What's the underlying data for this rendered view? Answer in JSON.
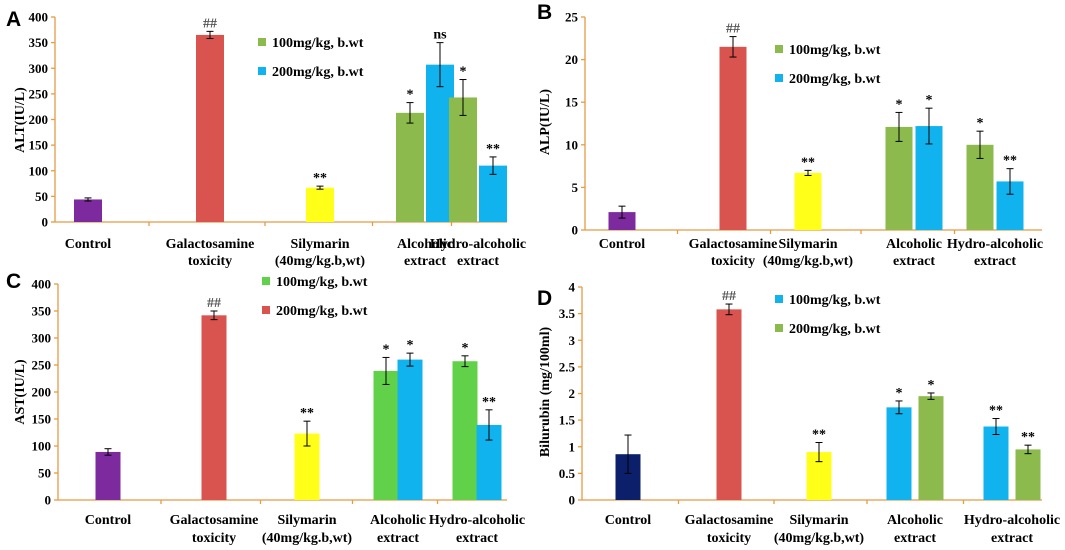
{
  "colors": {
    "purple": "#7c2a9e",
    "red": "#d9534f",
    "yellow": "#ffff1a",
    "olive_green": "#8cba4c",
    "bright_green": "#62d14a",
    "blue": "#11b3ee",
    "navy": "#0c1f6b",
    "axis": "#e69b45"
  },
  "chart_data": [
    {
      "panel": "A",
      "type": "bar",
      "ylabel": "ALT(IU/L)",
      "ylim": [
        0,
        400
      ],
      "yticks": [
        0,
        50,
        100,
        150,
        200,
        250,
        300,
        350,
        400
      ],
      "categories": [
        {
          "lines": [
            "Control"
          ]
        },
        {
          "lines": [
            "Galactosamine",
            "toxicity"
          ]
        },
        {
          "lines": [
            "Silymarin",
            "(40mg/kg.b,wt)"
          ]
        },
        {
          "lines": [
            "Alcoholic",
            "extract"
          ]
        },
        {
          "lines": [
            "Hydro-alcoholic",
            "extract"
          ]
        }
      ],
      "legend": [
        {
          "label": "100mg/kg, b.wt",
          "color": "#8cba4c"
        },
        {
          "label": "200mg/kg, b.wt",
          "color": "#11b3ee"
        }
      ],
      "bars": [
        {
          "cat": 0,
          "slot": "single",
          "value": 44,
          "error": 3,
          "color": "#7c2a9e",
          "label": ""
        },
        {
          "cat": 1,
          "slot": "single",
          "value": 365,
          "error": 7,
          "color": "#d9534f",
          "label": "##"
        },
        {
          "cat": 2,
          "slot": "single",
          "value": 67,
          "error": 3,
          "color": "#ffff1a",
          "label": "**"
        },
        {
          "cat": 3,
          "slot": "left",
          "value": 213,
          "error": 20,
          "color": "#8cba4c",
          "label": "*"
        },
        {
          "cat": 3,
          "slot": "right",
          "value": 307,
          "error": 43,
          "color": "#11b3ee",
          "label": "ns"
        },
        {
          "cat": 4,
          "slot": "left",
          "value": 243,
          "error": 35,
          "color": "#8cba4c",
          "label": "*"
        },
        {
          "cat": 4,
          "slot": "right",
          "value": 110,
          "error": 17,
          "color": "#11b3ee",
          "label": "**"
        }
      ]
    },
    {
      "panel": "B",
      "type": "bar",
      "ylabel": "ALP(IU/L)",
      "ylim": [
        0,
        25
      ],
      "yticks": [
        0,
        5,
        10,
        15,
        20,
        25
      ],
      "categories": [
        {
          "lines": [
            "Control"
          ]
        },
        {
          "lines": [
            "Galactosamine",
            "toxicity"
          ]
        },
        {
          "lines": [
            "Silymarin",
            "(40mg/kg.b,wt)"
          ]
        },
        {
          "lines": [
            "Alcoholic",
            "extract"
          ]
        },
        {
          "lines": [
            "Hydro-alcoholic",
            "extract"
          ]
        }
      ],
      "legend": [
        {
          "label": "100mg/kg, b.wt",
          "color": "#8cba4c"
        },
        {
          "label": "200mg/kg, b.wt",
          "color": "#11b3ee"
        }
      ],
      "bars": [
        {
          "cat": 0,
          "slot": "single",
          "value": 2.1,
          "error": 0.7,
          "color": "#7c2a9e",
          "label": ""
        },
        {
          "cat": 1,
          "slot": "single",
          "value": 21.5,
          "error": 1.2,
          "color": "#d9534f",
          "label": "##"
        },
        {
          "cat": 2,
          "slot": "single",
          "value": 6.7,
          "error": 0.3,
          "color": "#ffff1a",
          "label": "**"
        },
        {
          "cat": 3,
          "slot": "left",
          "value": 12.1,
          "error": 1.7,
          "color": "#8cba4c",
          "label": "*"
        },
        {
          "cat": 3,
          "slot": "right",
          "value": 12.2,
          "error": 2.1,
          "color": "#11b3ee",
          "label": "*"
        },
        {
          "cat": 4,
          "slot": "left",
          "value": 10.0,
          "error": 1.6,
          "color": "#8cba4c",
          "label": "*"
        },
        {
          "cat": 4,
          "slot": "right",
          "value": 5.7,
          "error": 1.5,
          "color": "#11b3ee",
          "label": "**"
        }
      ]
    },
    {
      "panel": "C",
      "type": "bar",
      "ylabel": "AST(IU/L)",
      "ylim": [
        0,
        400
      ],
      "yticks": [
        0,
        50,
        100,
        150,
        200,
        250,
        300,
        350,
        400
      ],
      "categories": [
        {
          "lines": [
            "Control"
          ]
        },
        {
          "lines": [
            "Galactosamine",
            "toxicity"
          ]
        },
        {
          "lines": [
            "Silymarin",
            "(40mg/kg.b,wt)"
          ]
        },
        {
          "lines": [
            "Alcoholic",
            "extract"
          ]
        },
        {
          "lines": [
            "Hydro-alcoholic",
            "extract"
          ]
        }
      ],
      "legend": [
        {
          "label": "100mg/kg, b.wt",
          "color": "#62d14a"
        },
        {
          "label": "200mg/kg, b.wt",
          "color": "#d9534f"
        }
      ],
      "bars": [
        {
          "cat": 0,
          "slot": "single",
          "value": 89,
          "error": 6,
          "color": "#7c2a9e",
          "label": ""
        },
        {
          "cat": 1,
          "slot": "single",
          "value": 342,
          "error": 8,
          "color": "#d9534f",
          "label": "##"
        },
        {
          "cat": 2,
          "slot": "single",
          "value": 123,
          "error": 23,
          "color": "#ffff1a",
          "label": "**"
        },
        {
          "cat": 3,
          "slot": "left",
          "value": 239,
          "error": 25,
          "color": "#62d14a",
          "label": "*"
        },
        {
          "cat": 3,
          "slot": "right",
          "value": 260,
          "error": 12,
          "color": "#11b3ee",
          "label": "*"
        },
        {
          "cat": 4,
          "slot": "left",
          "value": 257,
          "error": 10,
          "color": "#62d14a",
          "label": "*"
        },
        {
          "cat": 4,
          "slot": "right",
          "value": 139,
          "error": 28,
          "color": "#11b3ee",
          "label": "**"
        }
      ]
    },
    {
      "panel": "D",
      "type": "bar",
      "ylabel": "Bilurubin (mg/100ml)",
      "ylim": [
        0,
        4
      ],
      "yticks": [
        0,
        0.5,
        1,
        1.5,
        2,
        2.5,
        3,
        3.5,
        4
      ],
      "categories": [
        {
          "lines": [
            "Control"
          ]
        },
        {
          "lines": [
            "Galactosamine",
            "toxicity"
          ]
        },
        {
          "lines": [
            "Silymarin",
            "(40mg/kg.b,wt)"
          ]
        },
        {
          "lines": [
            "Alcoholic",
            "extract"
          ]
        },
        {
          "lines": [
            "Hydro-alcoholic",
            "extract"
          ]
        }
      ],
      "legend": [
        {
          "label": "100mg/kg, b.wt",
          "color": "#11b3ee"
        },
        {
          "label": "200mg/kg, b.wt",
          "color": "#8cba4c"
        }
      ],
      "bars": [
        {
          "cat": 0,
          "slot": "single",
          "value": 0.86,
          "error": 0.36,
          "color": "#0c1f6b",
          "label": ""
        },
        {
          "cat": 1,
          "slot": "single",
          "value": 3.58,
          "error": 0.1,
          "color": "#d9534f",
          "label": "##"
        },
        {
          "cat": 2,
          "slot": "single",
          "value": 0.9,
          "error": 0.18,
          "color": "#ffff1a",
          "label": "**"
        },
        {
          "cat": 3,
          "slot": "left",
          "value": 1.74,
          "error": 0.12,
          "color": "#11b3ee",
          "label": "*"
        },
        {
          "cat": 3,
          "slot": "right",
          "value": 1.95,
          "error": 0.06,
          "color": "#8cba4c",
          "label": "*"
        },
        {
          "cat": 4,
          "slot": "left",
          "value": 1.38,
          "error": 0.15,
          "color": "#11b3ee",
          "label": "**"
        },
        {
          "cat": 4,
          "slot": "right",
          "value": 0.95,
          "error": 0.08,
          "color": "#8cba4c",
          "label": "**"
        }
      ]
    }
  ]
}
